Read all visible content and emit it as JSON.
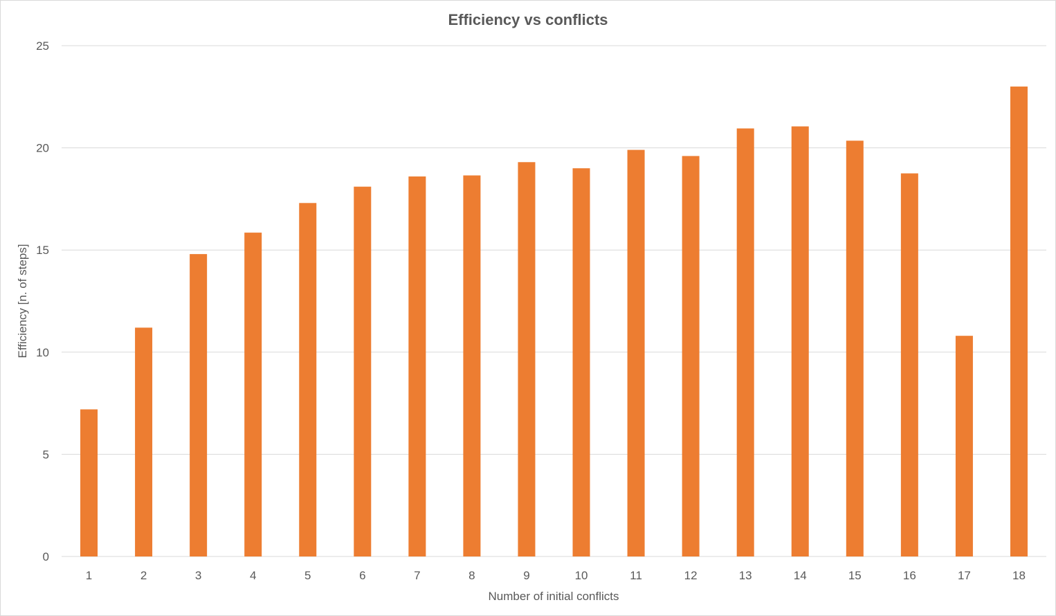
{
  "chart_data": {
    "type": "bar",
    "title": "Efficiency vs conflicts",
    "xlabel": "Number of initial conflicts",
    "ylabel": "Efficiency  [n. of steps]",
    "categories": [
      "1",
      "2",
      "3",
      "4",
      "5",
      "6",
      "7",
      "8",
      "9",
      "10",
      "11",
      "12",
      "13",
      "14",
      "15",
      "16",
      "17",
      "18"
    ],
    "values": [
      7.2,
      11.2,
      14.8,
      15.85,
      17.3,
      18.1,
      18.6,
      18.65,
      19.3,
      19.0,
      19.9,
      19.6,
      20.95,
      21.05,
      20.35,
      18.75,
      10.8,
      23.0
    ],
    "ylim": [
      0,
      25
    ],
    "yticks": [
      0,
      5,
      10,
      15,
      20,
      25
    ],
    "grid": true,
    "legend": "none",
    "colors": {
      "bar": "#ed7d31",
      "grid": "#d9d9d9",
      "text": "#595959"
    }
  }
}
